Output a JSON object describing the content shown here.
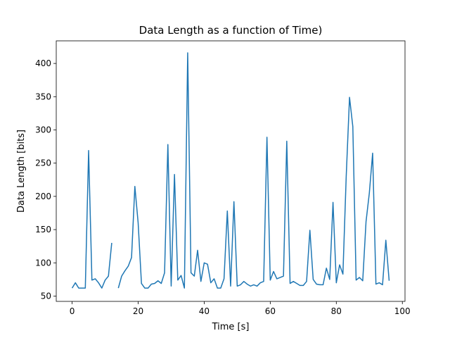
{
  "chart_data": {
    "type": "line",
    "title": "Data Length as a function of Time)",
    "xlabel": "Time [s]",
    "ylabel": "Data Length [bits]",
    "xlim": [
      -4.8,
      100.8
    ],
    "ylim": [
      42,
      434
    ],
    "xticks": [
      0,
      20,
      40,
      60,
      80,
      100
    ],
    "yticks": [
      50,
      100,
      150,
      200,
      250,
      300,
      350,
      400
    ],
    "grid": false,
    "line_color": "#1f77b4",
    "series": [
      {
        "segments": [
          [
            [
              0,
              62
            ],
            [
              1,
              70
            ],
            [
              2,
              62
            ],
            [
              3,
              62
            ],
            [
              4,
              62
            ],
            [
              5,
              269
            ],
            [
              6,
              74
            ],
            [
              7,
              76
            ],
            [
              8,
              70
            ],
            [
              9,
              62
            ],
            [
              10,
              74
            ],
            [
              11,
              80
            ],
            [
              12,
              130
            ]
          ],
          [
            [
              14,
              62
            ],
            [
              15,
              80
            ],
            [
              16,
              88
            ],
            [
              17,
              95
            ],
            [
              18,
              108
            ],
            [
              19,
              215
            ],
            [
              20,
              160
            ],
            [
              21,
              69
            ],
            [
              22,
              62
            ],
            [
              23,
              62
            ],
            [
              24,
              68
            ],
            [
              25,
              69
            ],
            [
              26,
              73
            ],
            [
              27,
              69
            ],
            [
              28,
              85
            ],
            [
              29,
              278
            ],
            [
              30,
              65
            ],
            [
              31,
              233
            ],
            [
              32,
              74
            ],
            [
              33,
              81
            ],
            [
              34,
              62
            ],
            [
              35,
              416
            ],
            [
              36,
              85
            ],
            [
              37,
              80
            ],
            [
              38,
              119
            ],
            [
              39,
              72
            ],
            [
              40,
              100
            ],
            [
              41,
              98
            ],
            [
              42,
              70
            ],
            [
              43,
              76
            ],
            [
              44,
              62
            ],
            [
              45,
              62
            ],
            [
              46,
              76
            ],
            [
              47,
              178
            ],
            [
              48,
              65
            ],
            [
              49,
              192
            ],
            [
              50,
              65
            ],
            [
              51,
              67
            ],
            [
              52,
              72
            ],
            [
              53,
              68
            ],
            [
              54,
              65
            ],
            [
              55,
              67
            ],
            [
              56,
              65
            ],
            [
              57,
              70
            ],
            [
              58,
              72
            ],
            [
              59,
              289
            ],
            [
              60,
              74
            ],
            [
              61,
              87
            ],
            [
              62,
              76
            ],
            [
              63,
              78
            ],
            [
              64,
              80
            ],
            [
              65,
              283
            ],
            [
              66,
              69
            ],
            [
              67,
              72
            ],
            [
              68,
              69
            ],
            [
              69,
              66
            ],
            [
              70,
              66
            ],
            [
              71,
              72
            ],
            [
              72,
              149
            ],
            [
              73,
              75
            ],
            [
              74,
              68
            ],
            [
              75,
              67
            ],
            [
              76,
              67
            ],
            [
              77,
              92
            ],
            [
              78,
              75
            ],
            [
              79,
              191
            ],
            [
              80,
              70
            ],
            [
              81,
              97
            ],
            [
              82,
              83
            ],
            [
              83,
              230
            ],
            [
              84,
              349
            ],
            [
              85,
              305
            ],
            [
              86,
              74
            ],
            [
              87,
              78
            ],
            [
              88,
              73
            ],
            [
              89,
              162
            ],
            [
              90,
              205
            ],
            [
              91,
              265
            ],
            [
              92,
              68
            ],
            [
              93,
              70
            ],
            [
              94,
              67
            ],
            [
              95,
              134
            ],
            [
              96,
              73
            ]
          ]
        ]
      }
    ]
  }
}
